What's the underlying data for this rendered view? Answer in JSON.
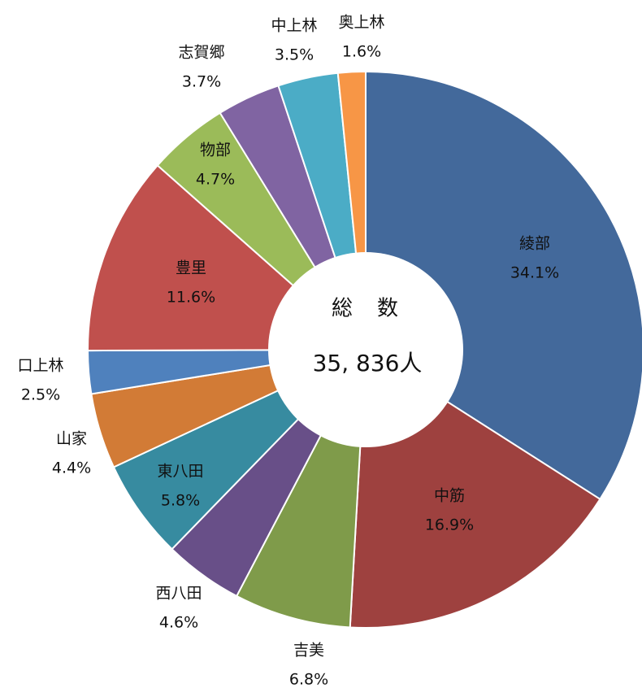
{
  "chart_data": {
    "type": "donut",
    "categories": [
      "綾部",
      "中筋",
      "吉美",
      "西八田",
      "東八田",
      "山家",
      "口上林",
      "豊里",
      "物部",
      "志賀郷",
      "中上林",
      "奥上林"
    ],
    "values": [
      34.1,
      16.9,
      6.8,
      4.6,
      5.8,
      4.4,
      2.5,
      11.6,
      4.7,
      3.7,
      3.5,
      1.6
    ],
    "value_labels": [
      "34.1%",
      "16.9%",
      "6.8%",
      "4.6%",
      "5.8%",
      "4.4%",
      "2.5%",
      "11.6%",
      "4.7%",
      "3.7%",
      "3.5%",
      "1.6%"
    ],
    "colors": [
      "#43699b",
      "#9e413f",
      "#7f9b4a",
      "#684f88",
      "#378ba0",
      "#d27b36",
      "#4f81bd",
      "#c0504d",
      "#9bbb59",
      "#8064a2",
      "#4bacc6",
      "#f79646"
    ],
    "center_title": "総　数",
    "total": 35836,
    "total_label": "35, 836人"
  }
}
